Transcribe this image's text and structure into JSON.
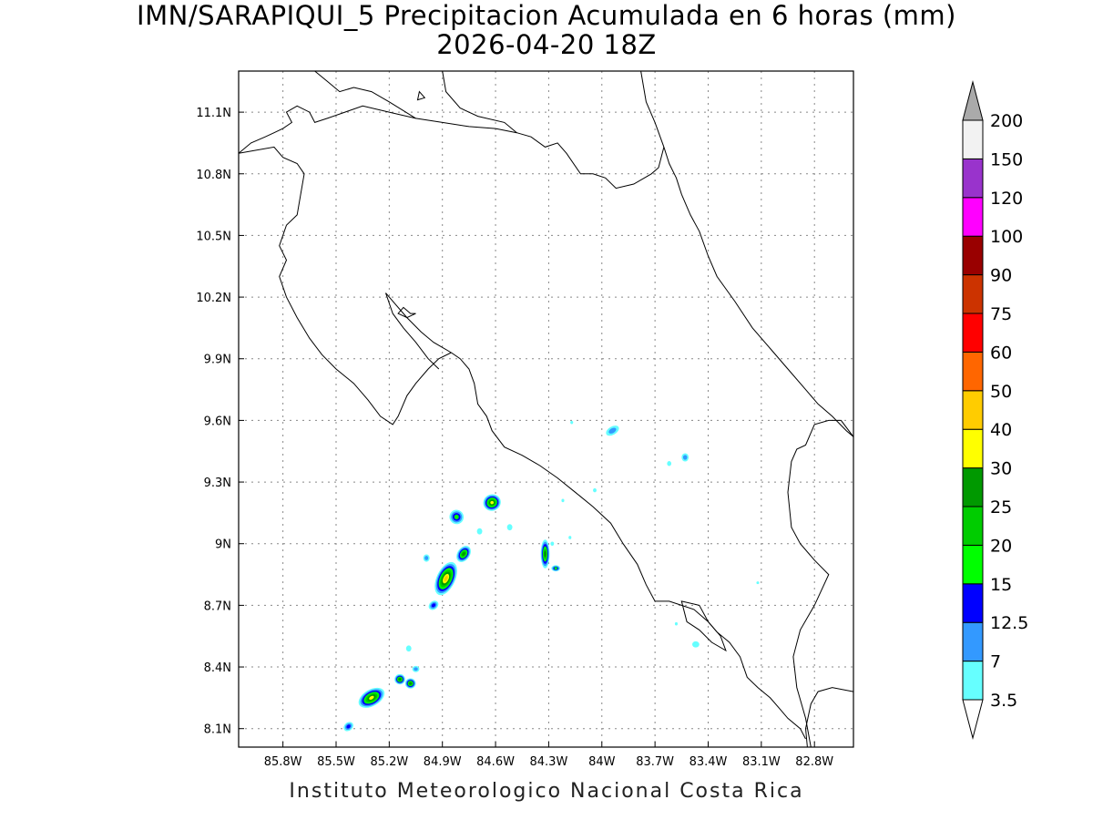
{
  "title": {
    "line1": "IMN/SARAPIQUI_5 Precipitacion Acumulada en 6 horas (mm)",
    "line2": "2026-04-20 18Z"
  },
  "footer": "Instituto Meteorologico Nacional Costa Rica",
  "map": {
    "lon_range": [
      -86.05,
      -82.58
    ],
    "lat_range": [
      8.01,
      11.3
    ],
    "lon_ticks": [
      {
        "v": -85.8,
        "label": "85.8W"
      },
      {
        "v": -85.5,
        "label": "85.5W"
      },
      {
        "v": -85.2,
        "label": "85.2W"
      },
      {
        "v": -84.9,
        "label": "84.9W"
      },
      {
        "v": -84.6,
        "label": "84.6W"
      },
      {
        "v": -84.3,
        "label": "84.3W"
      },
      {
        "v": -84.0,
        "label": "84W"
      },
      {
        "v": -83.7,
        "label": "83.7W"
      },
      {
        "v": -83.4,
        "label": "83.4W"
      },
      {
        "v": -83.1,
        "label": "83.1W"
      },
      {
        "v": -82.8,
        "label": "82.8W"
      }
    ],
    "lat_ticks": [
      {
        "v": 8.1,
        "label": "8.1N"
      },
      {
        "v": 8.4,
        "label": "8.4N"
      },
      {
        "v": 8.7,
        "label": "8.7N"
      },
      {
        "v": 9.0,
        "label": "9N"
      },
      {
        "v": 9.3,
        "label": "9.3N"
      },
      {
        "v": 9.6,
        "label": "9.6N"
      },
      {
        "v": 9.9,
        "label": "9.9N"
      },
      {
        "v": 10.2,
        "label": "10.2N"
      },
      {
        "v": 10.5,
        "label": "10.5N"
      },
      {
        "v": 10.8,
        "label": "10.8N"
      },
      {
        "v": 11.1,
        "label": "11.1N"
      }
    ],
    "grid": true,
    "coastline": [
      [
        [
          -86.05,
          10.9
        ],
        [
          -85.98,
          10.95
        ],
        [
          -85.9,
          10.98
        ],
        [
          -85.85,
          11.0
        ],
        [
          -85.8,
          11.02
        ],
        [
          -85.75,
          11.05
        ],
        [
          -85.78,
          11.1
        ],
        [
          -85.72,
          11.13
        ],
        [
          -85.65,
          11.1
        ],
        [
          -85.62,
          11.05
        ],
        [
          -85.55,
          11.07
        ],
        [
          -85.45,
          11.1
        ],
        [
          -85.35,
          11.13
        ],
        [
          -85.2,
          11.1
        ],
        [
          -85.05,
          11.07
        ],
        [
          -84.9,
          11.05
        ],
        [
          -84.75,
          11.03
        ],
        [
          -84.6,
          11.02
        ],
        [
          -84.48,
          11.0
        ],
        [
          -84.4,
          10.98
        ],
        [
          -84.32,
          10.93
        ],
        [
          -84.25,
          10.95
        ],
        [
          -84.2,
          10.9
        ],
        [
          -84.12,
          10.8
        ],
        [
          -84.05,
          10.8
        ],
        [
          -83.98,
          10.78
        ],
        [
          -83.92,
          10.73
        ],
        [
          -83.82,
          10.75
        ],
        [
          -83.72,
          10.8
        ],
        [
          -83.68,
          10.83
        ],
        [
          -83.65,
          10.93
        ]
      ],
      [
        [
          -85.62,
          11.3
        ],
        [
          -85.55,
          11.25
        ],
        [
          -85.48,
          11.2
        ],
        [
          -85.4,
          11.22
        ],
        [
          -85.3,
          11.2
        ],
        [
          -85.2,
          11.15
        ],
        [
          -85.05,
          11.07
        ]
      ],
      [
        [
          -84.9,
          11.3
        ],
        [
          -84.88,
          11.2
        ],
        [
          -84.8,
          11.12
        ],
        [
          -84.7,
          11.08
        ],
        [
          -84.55,
          11.05
        ],
        [
          -84.48,
          11.0
        ]
      ],
      [
        [
          -83.78,
          11.3
        ],
        [
          -83.75,
          11.15
        ],
        [
          -83.7,
          11.05
        ],
        [
          -83.65,
          10.93
        ]
      ],
      [
        [
          -83.65,
          10.93
        ],
        [
          -83.62,
          10.85
        ],
        [
          -83.58,
          10.78
        ],
        [
          -83.55,
          10.7
        ],
        [
          -83.5,
          10.6
        ],
        [
          -83.45,
          10.52
        ],
        [
          -83.4,
          10.4
        ],
        [
          -83.35,
          10.3
        ],
        [
          -83.25,
          10.18
        ],
        [
          -83.15,
          10.05
        ],
        [
          -83.05,
          9.95
        ],
        [
          -82.95,
          9.85
        ],
        [
          -82.85,
          9.75
        ],
        [
          -82.78,
          9.68
        ],
        [
          -82.7,
          9.62
        ],
        [
          -82.62,
          9.55
        ],
        [
          -82.58,
          9.52
        ]
      ],
      [
        [
          -82.58,
          9.52
        ],
        [
          -82.65,
          9.6
        ],
        [
          -82.72,
          9.6
        ],
        [
          -82.8,
          9.58
        ],
        [
          -82.85,
          9.48
        ],
        [
          -82.9,
          9.46
        ],
        [
          -82.93,
          9.4
        ],
        [
          -82.95,
          9.25
        ],
        [
          -82.93,
          9.08
        ],
        [
          -82.88,
          9.0
        ],
        [
          -82.8,
          8.92
        ],
        [
          -82.72,
          8.85
        ],
        [
          -82.8,
          8.7
        ],
        [
          -82.88,
          8.58
        ],
        [
          -82.92,
          8.45
        ],
        [
          -82.9,
          8.3
        ],
        [
          -82.85,
          8.15
        ],
        [
          -82.82,
          8.01
        ]
      ],
      [
        [
          -82.84,
          8.01
        ],
        [
          -82.85,
          8.1
        ],
        [
          -82.82,
          8.22
        ],
        [
          -82.78,
          8.28
        ],
        [
          -82.7,
          8.3
        ],
        [
          -82.58,
          8.28
        ]
      ],
      [
        [
          -82.85,
          8.05
        ],
        [
          -82.88,
          8.1
        ],
        [
          -82.95,
          8.15
        ],
        [
          -83.0,
          8.2
        ],
        [
          -83.05,
          8.25
        ],
        [
          -83.12,
          8.3
        ],
        [
          -83.18,
          8.35
        ],
        [
          -83.22,
          8.45
        ],
        [
          -83.28,
          8.52
        ],
        [
          -83.35,
          8.57
        ],
        [
          -83.4,
          8.62
        ],
        [
          -83.48,
          8.68
        ],
        [
          -83.55,
          8.7
        ],
        [
          -83.62,
          8.72
        ],
        [
          -83.7,
          8.72
        ],
        [
          -83.75,
          8.8
        ],
        [
          -83.8,
          8.9
        ],
        [
          -83.88,
          9.0
        ],
        [
          -83.95,
          9.1
        ],
        [
          -84.05,
          9.18
        ],
        [
          -84.15,
          9.25
        ],
        [
          -84.25,
          9.32
        ],
        [
          -84.35,
          9.38
        ],
        [
          -84.45,
          9.43
        ],
        [
          -84.55,
          9.47
        ],
        [
          -84.62,
          9.55
        ],
        [
          -84.65,
          9.62
        ],
        [
          -84.7,
          9.68
        ],
        [
          -84.72,
          9.78
        ],
        [
          -84.75,
          9.85
        ],
        [
          -84.8,
          9.9
        ],
        [
          -84.85,
          9.93
        ]
      ],
      [
        [
          -84.85,
          9.93
        ],
        [
          -84.92,
          9.9
        ],
        [
          -84.98,
          9.85
        ],
        [
          -85.05,
          9.78
        ],
        [
          -85.1,
          9.72
        ],
        [
          -85.15,
          9.62
        ],
        [
          -85.18,
          9.58
        ],
        [
          -85.25,
          9.62
        ],
        [
          -85.32,
          9.7
        ],
        [
          -85.4,
          9.78
        ],
        [
          -85.5,
          9.85
        ],
        [
          -85.58,
          9.92
        ],
        [
          -85.65,
          10.0
        ],
        [
          -85.72,
          10.1
        ],
        [
          -85.78,
          10.2
        ],
        [
          -85.82,
          10.3
        ],
        [
          -85.78,
          10.38
        ],
        [
          -85.82,
          10.45
        ],
        [
          -85.78,
          10.55
        ],
        [
          -85.72,
          10.6
        ],
        [
          -85.7,
          10.7
        ],
        [
          -85.68,
          10.8
        ],
        [
          -85.72,
          10.85
        ],
        [
          -85.8,
          10.88
        ],
        [
          -85.85,
          10.93
        ],
        [
          -86.05,
          10.9
        ]
      ],
      [
        [
          -84.85,
          9.93
        ],
        [
          -84.95,
          9.98
        ],
        [
          -85.02,
          10.03
        ],
        [
          -85.1,
          10.1
        ],
        [
          -85.18,
          10.18
        ],
        [
          -85.22,
          10.22
        ]
      ],
      [
        [
          -85.22,
          10.22
        ],
        [
          -85.18,
          10.12
        ],
        [
          -85.12,
          10.05
        ],
        [
          -85.05,
          9.98
        ],
        [
          -84.98,
          9.9
        ],
        [
          -84.92,
          9.85
        ]
      ]
    ],
    "islands": [
      [
        [
          -85.12,
          10.15
        ],
        [
          -85.08,
          10.12
        ],
        [
          -85.05,
          10.12
        ],
        [
          -85.1,
          10.1
        ],
        [
          -85.15,
          10.12
        ],
        [
          -85.12,
          10.15
        ]
      ],
      [
        [
          -85.03,
          11.2
        ],
        [
          -85.0,
          11.17
        ],
        [
          -85.04,
          11.16
        ],
        [
          -85.03,
          11.2
        ]
      ],
      [
        [
          -83.55,
          8.72
        ],
        [
          -83.45,
          8.7
        ],
        [
          -83.4,
          8.62
        ],
        [
          -83.33,
          8.55
        ],
        [
          -83.3,
          8.48
        ],
        [
          -83.38,
          8.52
        ],
        [
          -83.45,
          8.58
        ],
        [
          -83.52,
          8.62
        ],
        [
          -83.55,
          8.72
        ]
      ]
    ],
    "precip_cells": [
      {
        "lon": -85.3,
        "lat": 8.25,
        "rx": 0.08,
        "ry": 0.04,
        "rot": -30,
        "level": 30
      },
      {
        "lon": -85.14,
        "lat": 8.34,
        "rx": 0.03,
        "ry": 0.025,
        "rot": 0,
        "level": 25
      },
      {
        "lon": -85.08,
        "lat": 8.32,
        "rx": 0.03,
        "ry": 0.025,
        "rot": 0,
        "level": 25
      },
      {
        "lon": -85.05,
        "lat": 8.39,
        "rx": 0.02,
        "ry": 0.015,
        "rot": 0,
        "level": 7
      },
      {
        "lon": -85.09,
        "lat": 8.49,
        "rx": 0.015,
        "ry": 0.015,
        "rot": 0,
        "level": 3.5
      },
      {
        "lon": -85.43,
        "lat": 8.11,
        "rx": 0.03,
        "ry": 0.02,
        "rot": -40,
        "level": 12.5
      },
      {
        "lon": -84.88,
        "lat": 8.83,
        "rx": 0.1,
        "ry": 0.045,
        "rot": -65,
        "level": 40
      },
      {
        "lon": -84.78,
        "lat": 8.95,
        "rx": 0.05,
        "ry": 0.03,
        "rot": -55,
        "level": 25
      },
      {
        "lon": -84.95,
        "lat": 8.7,
        "rx": 0.03,
        "ry": 0.02,
        "rot": -40,
        "level": 12.5
      },
      {
        "lon": -84.99,
        "lat": 8.93,
        "rx": 0.018,
        "ry": 0.018,
        "rot": 0,
        "level": 7
      },
      {
        "lon": -84.62,
        "lat": 9.2,
        "rx": 0.05,
        "ry": 0.04,
        "rot": -20,
        "level": 30
      },
      {
        "lon": -84.82,
        "lat": 9.13,
        "rx": 0.04,
        "ry": 0.035,
        "rot": -40,
        "level": 15
      },
      {
        "lon": -84.69,
        "lat": 9.06,
        "rx": 0.015,
        "ry": 0.015,
        "rot": 0,
        "level": 3.5
      },
      {
        "lon": -84.52,
        "lat": 9.08,
        "rx": 0.015,
        "ry": 0.015,
        "rot": 0,
        "level": 3.5
      },
      {
        "lon": -84.32,
        "lat": 8.95,
        "rx": 0.025,
        "ry": 0.07,
        "rot": 0,
        "level": 25
      },
      {
        "lon": -84.26,
        "lat": 8.88,
        "rx": 0.025,
        "ry": 0.015,
        "rot": 0,
        "level": 15
      },
      {
        "lon": -84.28,
        "lat": 9.0,
        "rx": 0.01,
        "ry": 0.01,
        "rot": 0,
        "level": 3.5
      },
      {
        "lon": -84.22,
        "lat": 9.21,
        "rx": 0.008,
        "ry": 0.008,
        "rot": 0,
        "level": 3.5
      },
      {
        "lon": -84.18,
        "lat": 9.03,
        "rx": 0.008,
        "ry": 0.008,
        "rot": 0,
        "level": 3.5
      },
      {
        "lon": -84.04,
        "lat": 9.26,
        "rx": 0.01,
        "ry": 0.01,
        "rot": 0,
        "level": 3.5
      },
      {
        "lon": -83.94,
        "lat": 9.55,
        "rx": 0.04,
        "ry": 0.02,
        "rot": -30,
        "level": 7
      },
      {
        "lon": -84.17,
        "lat": 9.59,
        "rx": 0.008,
        "ry": 0.008,
        "rot": 0,
        "level": 3.5
      },
      {
        "lon": -83.53,
        "lat": 9.42,
        "rx": 0.02,
        "ry": 0.02,
        "rot": 0,
        "level": 7
      },
      {
        "lon": -83.62,
        "lat": 9.39,
        "rx": 0.012,
        "ry": 0.012,
        "rot": 0,
        "level": 3.5
      },
      {
        "lon": -83.47,
        "lat": 8.51,
        "rx": 0.02,
        "ry": 0.015,
        "rot": 0,
        "level": 3.5
      },
      {
        "lon": -83.58,
        "lat": 8.61,
        "rx": 0.008,
        "ry": 0.008,
        "rot": 0,
        "level": 3.5
      },
      {
        "lon": -83.12,
        "lat": 8.81,
        "rx": 0.006,
        "ry": 0.006,
        "rot": 0,
        "level": 3.5
      }
    ]
  },
  "colorbar": {
    "levels": [
      "3.5",
      "7",
      "12.5",
      "15",
      "20",
      "25",
      "30",
      "40",
      "50",
      "60",
      "75",
      "90",
      "100",
      "120",
      "150",
      "200"
    ],
    "colors": [
      "#66ffff",
      "#3399ff",
      "#0000ff",
      "#00ff00",
      "#00cc00",
      "#009900",
      "#ffff00",
      "#ffcc00",
      "#ff6600",
      "#ff0000",
      "#cc3300",
      "#990000",
      "#ff00ff",
      "#9933cc",
      "#f2f2f2"
    ],
    "below_color": "#ffffff",
    "above_color": "#aaaaaa"
  }
}
